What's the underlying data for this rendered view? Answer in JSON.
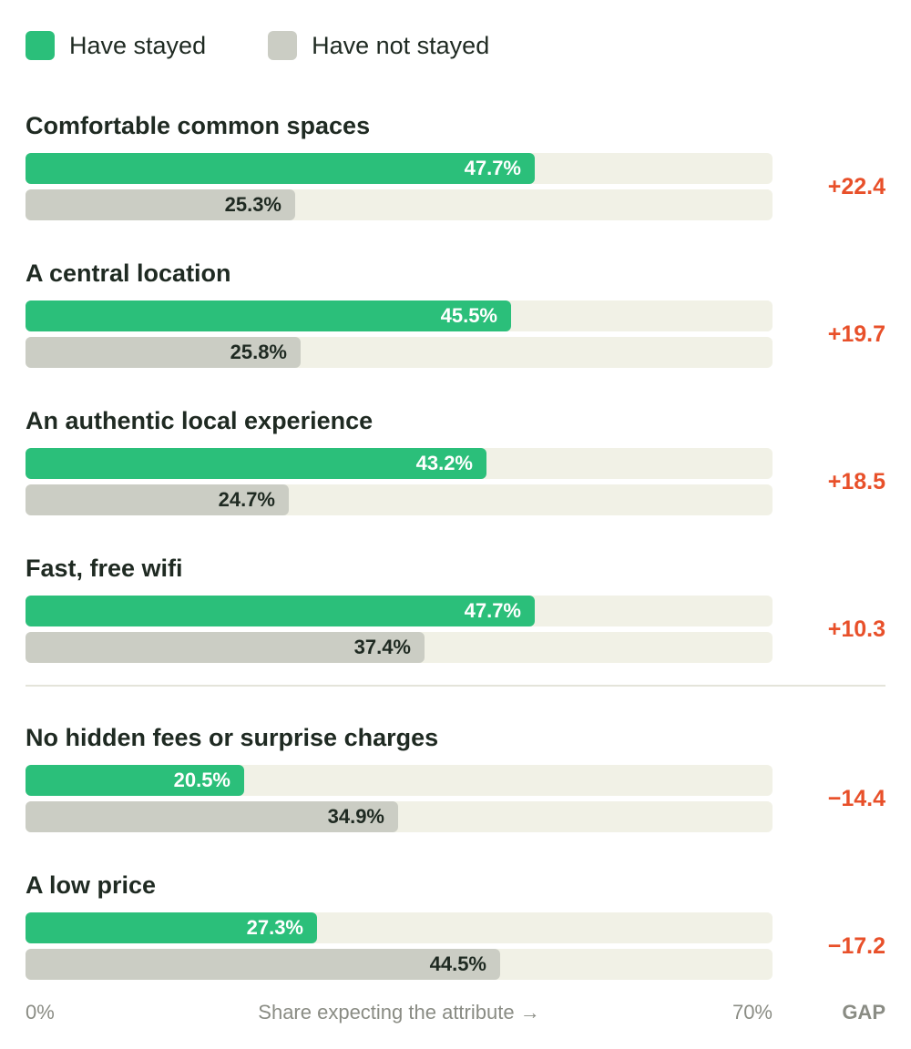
{
  "colors": {
    "stayed": "#2bbf7a",
    "not_stayed": "#cbcdc4",
    "track": "#f1f1e6",
    "gap": "#e8502a",
    "stayed_label": "#ffffff",
    "not_stayed_label": "#1f2a22"
  },
  "legend": [
    {
      "label": "Have stayed",
      "color": "#2bbf7a"
    },
    {
      "label": "Have not stayed",
      "color": "#cbcdc4"
    }
  ],
  "chart_data": {
    "type": "bar",
    "orientation": "horizontal",
    "xlim": [
      0,
      70
    ],
    "x_unit": "%",
    "categories": [
      "Comfortable common spaces",
      "A central location",
      "An authentic local experience",
      "Fast, free wifi",
      "No hidden fees or surprise charges",
      "A low price"
    ],
    "series": [
      {
        "name": "Have stayed",
        "values": [
          47.7,
          45.5,
          43.2,
          47.7,
          20.5,
          27.3
        ]
      },
      {
        "name": "Have not stayed",
        "values": [
          25.3,
          25.8,
          24.7,
          37.4,
          34.9,
          44.5
        ]
      }
    ],
    "value_labels": {
      "Have stayed": [
        "47.7%",
        "45.5%",
        "43.2%",
        "47.7%",
        "20.5%",
        "27.3%"
      ],
      "Have not stayed": [
        "25.3%",
        "25.8%",
        "24.7%",
        "37.4%",
        "34.9%",
        "44.5%"
      ]
    },
    "gap": [
      "+22.4",
      "+19.7",
      "+18.5",
      "+10.3",
      "−14.4",
      "−17.2"
    ],
    "divider_after_index": 3,
    "axis": {
      "min_label": "0%",
      "max_label": "70%",
      "title": "Share expecting the attribute →"
    },
    "gap_header": "GAP"
  }
}
